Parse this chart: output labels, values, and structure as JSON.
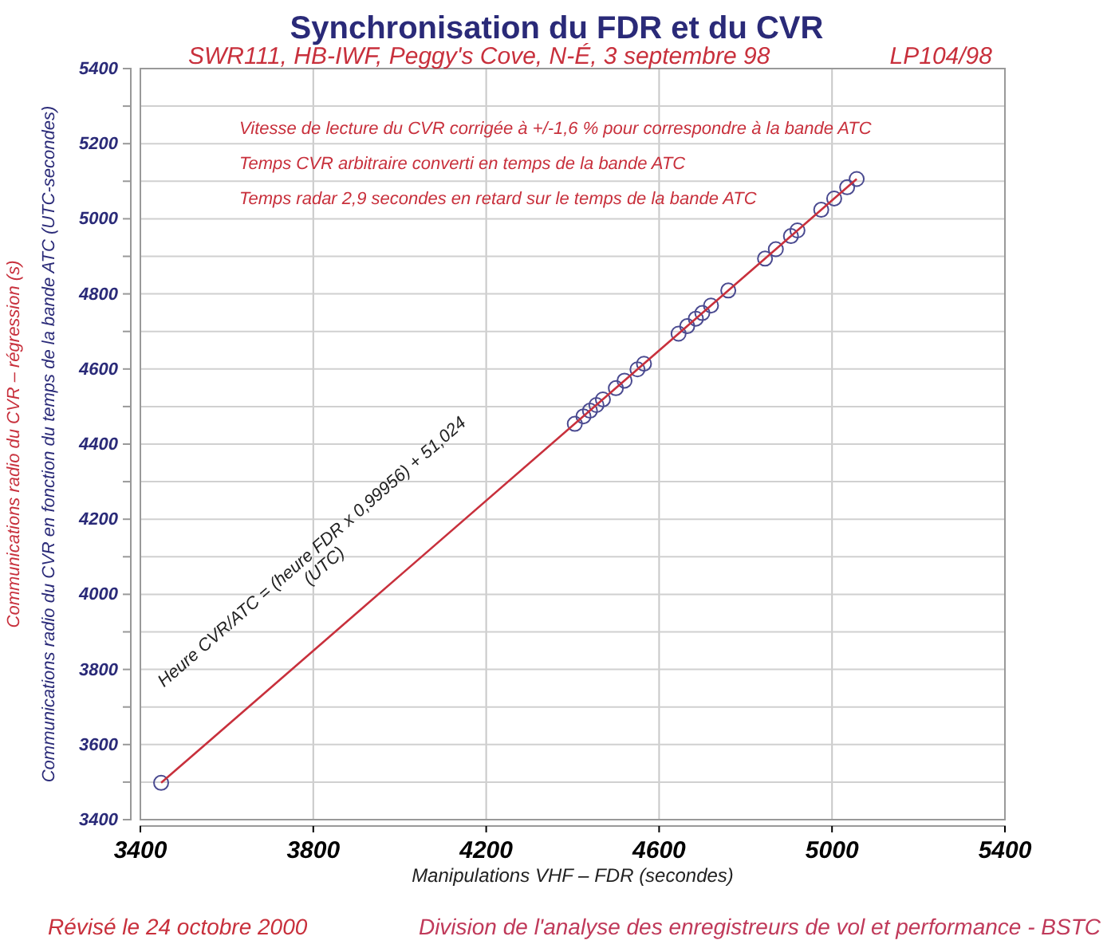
{
  "chart_data": {
    "type": "scatter",
    "title": "Synchronisation du FDR et du CVR",
    "subtitle": "SWR111, HB-IWF, Peggy's Cove, N-É, 3 septembre 98",
    "xlabel": "Manipulations VHF – FDR (secondes)",
    "ylabel": "Communications radio du CVR en fonction du temps de la  bande ATC (UTC-secondes)",
    "annotations": [
      "LP104/98",
      "Vitesse de lecture du CVR corrigée à +/-1,6 % pour correspondre à la bande ATC",
      "Temps CVR arbitraire converti en temps de la bande ATC",
      "Temps radar 2,9 secondes en retard sur le temps de la bande ATC",
      "Heure CVR/ATC = (heure FDR x 0,99956) + 51,024\n(UTC)",
      "Révisé le 24 octobre 2000",
      "Division de l'analyse des enregistreurs de vol et performance - BSTC"
    ],
    "xlim": [
      3400,
      5400
    ],
    "xticks": [
      3400,
      3800,
      4200,
      4600,
      5000,
      5400
    ],
    "ylim": [
      3400,
      5400
    ],
    "yticks": [
      3400,
      {
        "value": 3500,
        "label": null
      },
      3600,
      {
        "value": 3700,
        "label": null
      },
      3800,
      {
        "value": 3900,
        "label": null
      },
      4000,
      {
        "value": 4100,
        "label": null
      },
      4200,
      {
        "value": 4300,
        "label": null
      },
      4400,
      {
        "value": 4500,
        "label": null
      },
      4600,
      {
        "value": 4700,
        "label": null
      },
      4800,
      {
        "value": 4900,
        "label": null
      },
      5000,
      {
        "value": 5100,
        "label": null
      },
      5200,
      {
        "value": 5300,
        "label": null
      },
      5400
    ],
    "grid": true,
    "line_style": "solid",
    "series": [
      {
        "marker": "circle",
        "color": "#4a4a90",
        "x": [
          3448,
          4405,
          4425,
          4440,
          4455,
          4470,
          4500,
          4520,
          4550,
          4565,
          4645,
          4665,
          4685,
          4700,
          4720,
          4760,
          4845,
          4870,
          4905,
          4920,
          4975,
          5005,
          5035,
          5057
        ],
        "values": [
          3498,
          4454,
          4474,
          4489,
          4504,
          4519,
          4549,
          4569,
          4599,
          4614,
          4694,
          4714,
          4734,
          4749,
          4769,
          4809,
          4894,
          4919,
          4954,
          4969,
          5024,
          5054,
          5084,
          5106
        ]
      },
      {
        "type": "line",
        "name": "Communications radio du CVR – régression (s)",
        "color": "#c8303c",
        "x": [
          3448,
          5057
        ],
        "values": [
          3498,
          5106
        ]
      }
    ]
  }
}
